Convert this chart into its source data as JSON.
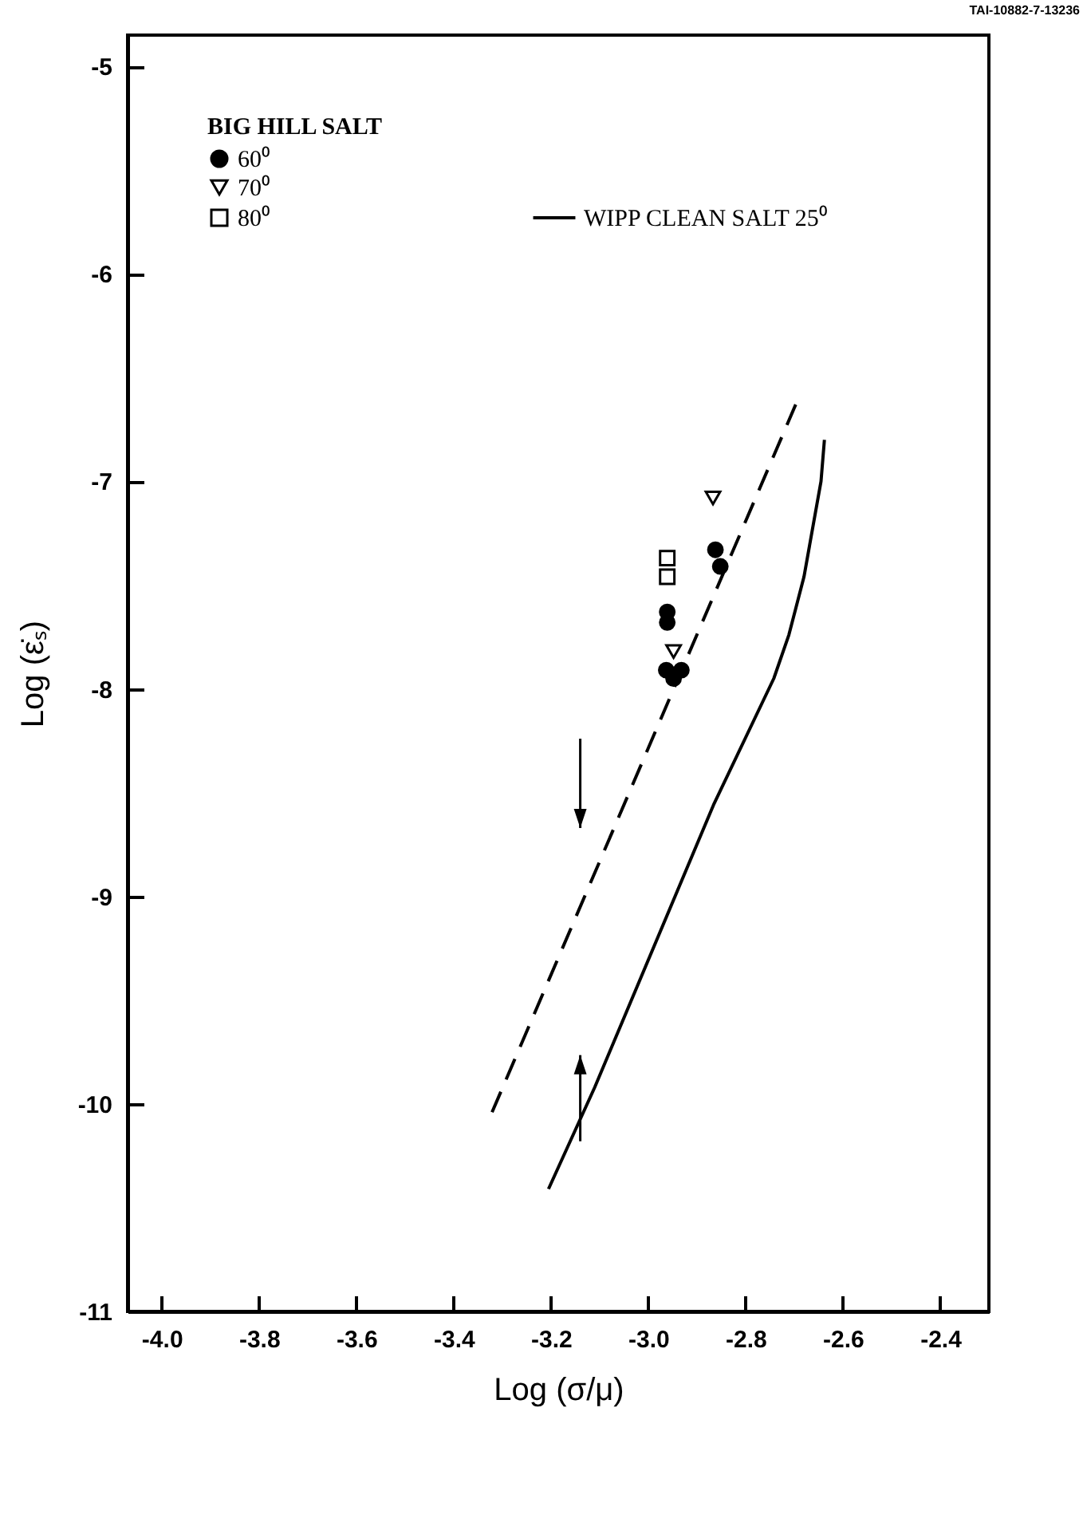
{
  "chart_data": {
    "type": "scatter",
    "xlabel": "Log (σ/μ)",
    "ylabel": "Log (ε̇ₛ)",
    "legend_title": "BIG HILL SALT",
    "annotations": [
      "TAI-10882-7-13236"
    ],
    "xlim": [
      -4.07,
      -2.3
    ],
    "ylim": [
      -11,
      -4.85
    ],
    "xticks": [
      {
        "value": -4.0,
        "label": "-4.0"
      },
      {
        "value": -3.8,
        "label": "-3.8"
      },
      {
        "value": -3.6,
        "label": "-3.6"
      },
      {
        "value": -3.4,
        "label": "-3.4"
      },
      {
        "value": -3.2,
        "label": "-3.2"
      },
      {
        "value": -3.0,
        "label": "-3.0"
      },
      {
        "value": -2.8,
        "label": "-2.8"
      },
      {
        "value": -2.6,
        "label": "-2.6"
      },
      {
        "value": -2.4,
        "label": "-2.4"
      }
    ],
    "yticks": [
      -11,
      -10,
      -9,
      -8,
      -7,
      -6,
      -5
    ],
    "grid": false,
    "legend": "top left",
    "series": [
      {
        "name": "WIPP CLEAN SALT 25⁰",
        "type": "line",
        "line_style": "solid",
        "color": "#000000",
        "x": [
          -3.205,
          -3.11,
          -2.866,
          -2.742,
          -2.711,
          -2.68,
          -2.645,
          -2.638
        ],
        "values": [
          -10.41,
          -9.92,
          -8.56,
          -7.95,
          -7.74,
          -7.46,
          -7.0,
          -6.8
        ]
      },
      {
        "type": "line",
        "line_style": "dashed",
        "color": "#000000",
        "x": [
          -3.321,
          -2.697
        ],
        "values": [
          -10.04,
          -6.63
        ]
      },
      {
        "name": "60⁰",
        "type": "scatter",
        "marker": "circle",
        "color": "#000000",
        "x": [
          -2.862,
          -2.852,
          -2.961,
          -2.961,
          -2.963,
          -2.932,
          -2.948
        ],
        "values": [
          -7.33,
          -7.41,
          -7.63,
          -7.68,
          -7.91,
          -7.91,
          -7.95
        ]
      },
      {
        "name": "70⁰",
        "type": "scatter",
        "marker": "triangle",
        "color": "#000000",
        "x": [
          -2.867,
          -2.948
        ],
        "values": [
          -7.08,
          -7.82
        ]
      },
      {
        "name": "80⁰",
        "type": "scatter",
        "marker": "square",
        "color": "#000000",
        "x": [
          -2.961,
          -2.961
        ],
        "values": [
          -7.37,
          -7.46
        ]
      }
    ]
  }
}
